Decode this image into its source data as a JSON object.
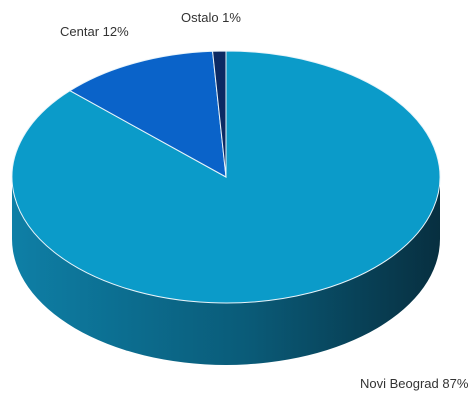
{
  "chart_data": {
    "type": "pie",
    "style": "3d",
    "title": "",
    "slices": [
      {
        "label": "Novi Beograd 87%",
        "value": 87,
        "top_color": "#0B9BC9",
        "side_color": "#0A6E8E"
      },
      {
        "label": "Centar 12%",
        "value": 12,
        "top_color": "#0A63C9",
        "side_color": "#0A4C94"
      },
      {
        "label": "Ostalo 1%",
        "value": 1,
        "top_color": "#0B2A63",
        "side_color": "#061A40"
      }
    ],
    "legend": "none"
  }
}
